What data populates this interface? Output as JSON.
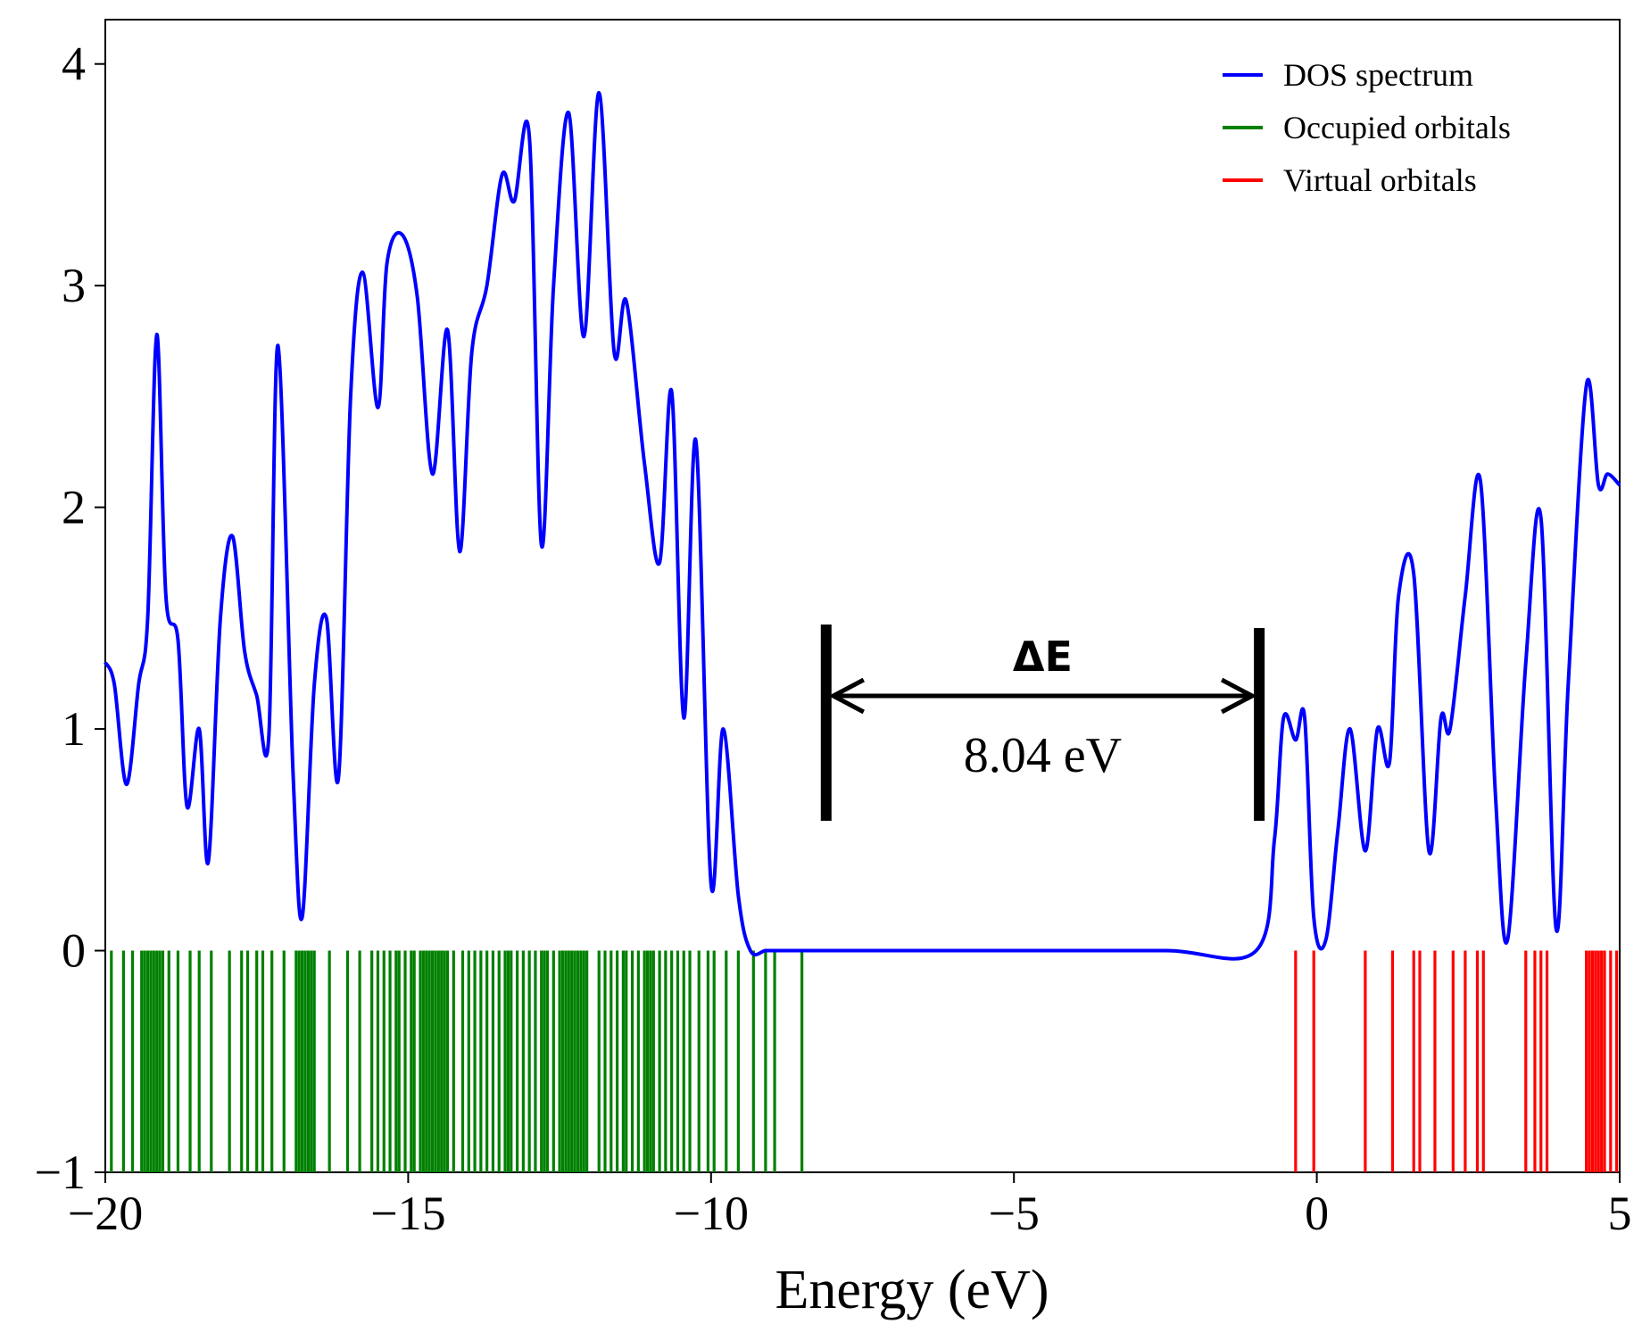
{
  "chart_data": {
    "type": "line",
    "xlabel": "Energy (eV)",
    "ylabel": "",
    "xlim": [
      -20,
      5
    ],
    "ylim": [
      -1,
      4.2
    ],
    "x_ticks": [
      -20,
      -15,
      -10,
      -5,
      0,
      5
    ],
    "x_tick_labels": [
      "−20",
      "−15",
      "−10",
      "−5",
      "0",
      "5"
    ],
    "y_ticks": [
      -1,
      0,
      1,
      2,
      3,
      4
    ],
    "y_tick_labels": [
      "−1",
      "0",
      "1",
      "2",
      "3",
      "4"
    ],
    "legend_position": "top-right",
    "series": [
      {
        "name": "DOS spectrum",
        "color": "#0000ff",
        "x": [
          -20,
          -19.85,
          -19.65,
          -19.45,
          -19.3,
          -19.15,
          -19.0,
          -18.8,
          -18.65,
          -18.45,
          -18.3,
          -18.1,
          -17.9,
          -17.7,
          -17.5,
          -17.3,
          -17.15,
          -16.9,
          -16.75,
          -16.55,
          -16.35,
          -16.15,
          -15.95,
          -15.75,
          -15.5,
          -15.35,
          -15.1,
          -14.85,
          -14.6,
          -14.35,
          -14.15,
          -13.95,
          -13.7,
          -13.45,
          -13.25,
          -13.0,
          -12.8,
          -12.6,
          -12.35,
          -12.1,
          -11.85,
          -11.6,
          -11.4,
          -11.1,
          -10.85,
          -10.65,
          -10.45,
          -10.25,
          -10.0,
          -9.8,
          -9.55,
          -9.35,
          -9.1,
          -8.9,
          -8.7,
          -8.5,
          -8.3,
          -8.1,
          -7.5,
          -5,
          -2.5,
          -1.0,
          -0.7,
          -0.55,
          -0.35,
          -0.2,
          -0.05,
          0.15,
          0.35,
          0.55,
          0.8,
          1.0,
          1.2,
          1.35,
          1.6,
          1.85,
          2.05,
          2.2,
          2.45,
          2.7,
          2.95,
          3.15,
          3.45,
          3.7,
          3.95,
          4.15,
          4.45,
          4.65,
          4.8,
          5.0
        ],
        "values": [
          1.3,
          1.2,
          0.75,
          1.2,
          1.5,
          2.78,
          1.6,
          1.4,
          0.65,
          1.0,
          0.4,
          1.5,
          1.87,
          1.35,
          1.15,
          0.97,
          2.73,
          0.8,
          0.15,
          1.2,
          1.5,
          0.78,
          2.5,
          3.06,
          2.45,
          3.1,
          3.23,
          2.95,
          2.15,
          2.8,
          1.8,
          2.7,
          3.0,
          3.5,
          3.38,
          3.67,
          1.83,
          3.0,
          3.78,
          2.77,
          3.87,
          2.7,
          2.93,
          2.2,
          1.75,
          2.52,
          1.05,
          2.3,
          0.3,
          1.0,
          0.25,
          0.0,
          0.0,
          0.0,
          0.0,
          0.0,
          0.0,
          0.0,
          0.0,
          0.0,
          0.0,
          0.0,
          0.5,
          1.05,
          0.95,
          1.05,
          0.15,
          0.05,
          0.55,
          1.0,
          0.45,
          1.0,
          0.85,
          1.6,
          1.7,
          0.45,
          1.05,
          1.0,
          1.6,
          2.12,
          0.7,
          0.05,
          1.3,
          1.95,
          0.1,
          1.2,
          2.55,
          2.1,
          2.15,
          2.1
        ]
      },
      {
        "name": "Occupied orbitals",
        "color": "#008000",
        "positions": [
          -19.9,
          -19.7,
          -19.55,
          -19.4,
          -19.35,
          -19.3,
          -19.25,
          -19.2,
          -19.15,
          -19.1,
          -19.05,
          -18.95,
          -18.8,
          -18.6,
          -18.45,
          -18.25,
          -17.95,
          -17.75,
          -17.65,
          -17.5,
          -17.4,
          -17.25,
          -17.05,
          -16.85,
          -16.8,
          -16.75,
          -16.7,
          -16.65,
          -16.6,
          -16.55,
          -16.3,
          -16.0,
          -15.8,
          -15.6,
          -15.5,
          -15.4,
          -15.3,
          -15.2,
          -15.15,
          -15.05,
          -14.95,
          -14.9,
          -14.8,
          -14.75,
          -14.7,
          -14.65,
          -14.6,
          -14.55,
          -14.5,
          -14.45,
          -14.4,
          -14.35,
          -14.25,
          -14.1,
          -14.0,
          -13.9,
          -13.8,
          -13.7,
          -13.6,
          -13.5,
          -13.4,
          -13.35,
          -13.3,
          -13.2,
          -13.1,
          -13.0,
          -12.9,
          -12.8,
          -12.75,
          -12.7,
          -12.6,
          -12.5,
          -12.45,
          -12.4,
          -12.35,
          -12.3,
          -12.25,
          -12.2,
          -12.15,
          -12.1,
          -12.05,
          -11.85,
          -11.75,
          -11.65,
          -11.55,
          -11.45,
          -11.4,
          -11.3,
          -11.2,
          -11.1,
          -11.05,
          -11.0,
          -10.95,
          -10.85,
          -10.75,
          -10.65,
          -10.55,
          -10.45,
          -10.35,
          -10.2,
          -10.05,
          -9.95,
          -9.75,
          -9.55,
          -9.3,
          -9.1,
          -8.95,
          -8.5
        ],
        "height": -1
      },
      {
        "name": "Virtual orbitals",
        "color": "#ff0000",
        "positions": [
          -0.35,
          -0.05,
          0.8,
          1.25,
          1.6,
          1.7,
          1.95,
          2.25,
          2.45,
          2.65,
          2.75,
          3.45,
          3.6,
          3.7,
          3.8,
          4.45,
          4.5,
          4.55,
          4.6,
          4.65,
          4.7,
          4.75,
          4.85,
          4.95
        ],
        "height": -1
      }
    ],
    "annotations": [
      {
        "text": "ΔE",
        "kind": "gap-label"
      },
      {
        "text": "8.04 eV",
        "kind": "gap-value",
        "x_start": -8.1,
        "x_end": -0.95
      }
    ]
  }
}
